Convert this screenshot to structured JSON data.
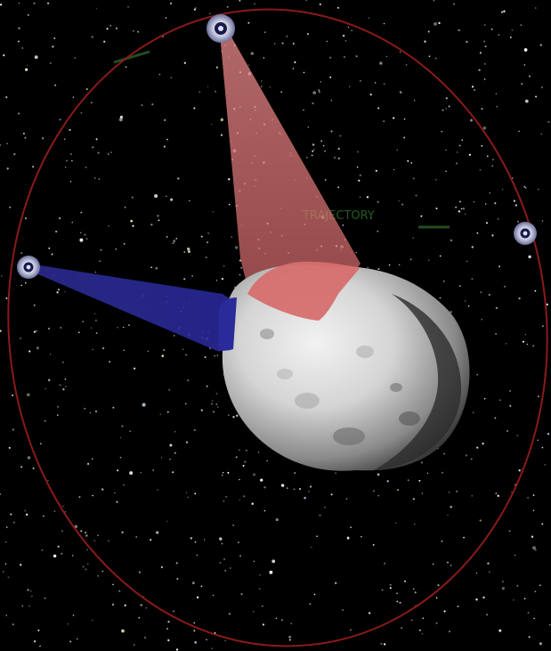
{
  "scene": {
    "colors": {
      "background": "#000000",
      "orbit": "#8b1a1a",
      "red_beam": "#e07070",
      "blue_beam": "#2a2a9a",
      "asteroid": "#d8d8d8",
      "faint_label": "#2f7a2f"
    },
    "orbit_label": "TRAJECTORY",
    "satellites": [
      {
        "name": "satellite-top",
        "beam": "red"
      },
      {
        "name": "satellite-left",
        "beam": "blue"
      },
      {
        "name": "satellite-right",
        "beam": "none"
      }
    ]
  }
}
